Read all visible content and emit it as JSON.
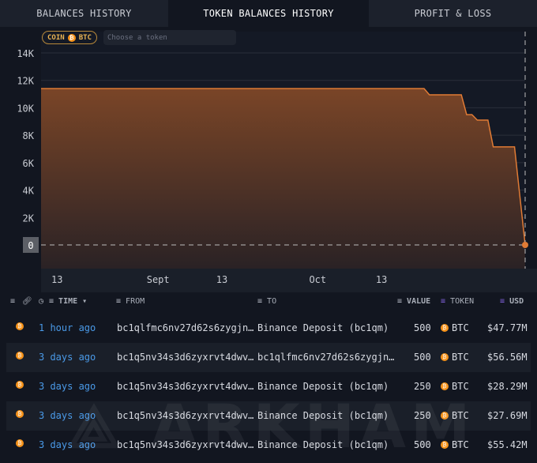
{
  "tabs": [
    {
      "label": "BALANCES HISTORY"
    },
    {
      "label": "TOKEN BALANCES HISTORY",
      "active": true
    },
    {
      "label": "PROFIT & LOSS"
    }
  ],
  "filters": {
    "chip_prefix": "COIN",
    "chip_token": "BTC",
    "token_placeholder": "Choose a token"
  },
  "chart_data": {
    "type": "area",
    "color": "#e07b35",
    "ylim": [
      0,
      14000
    ],
    "y_ticks": [
      "0",
      "2K",
      "4K",
      "6K",
      "8K",
      "10K",
      "12K",
      "14K"
    ],
    "x_ticks": [
      {
        "label": "13",
        "date": "Aug 13"
      },
      {
        "label": "Sept",
        "date": "Sep 1"
      },
      {
        "label": "13",
        "date": "Sep 13"
      },
      {
        "label": "Oct",
        "date": "Oct 1"
      },
      {
        "label": "13",
        "date": "Oct 13"
      }
    ],
    "x_range": [
      "Aug 10",
      "Nov 9"
    ],
    "current_value_label": "0",
    "points": [
      [
        "Aug 10",
        11400
      ],
      [
        "Oct 21",
        11400
      ],
      [
        "Oct 22",
        10950
      ],
      [
        "Oct 28",
        10950
      ],
      [
        "Oct 29",
        9500
      ],
      [
        "Oct 30",
        9500
      ],
      [
        "Oct 31",
        9100
      ],
      [
        "Nov 2",
        9100
      ],
      [
        "Nov 3",
        7150
      ],
      [
        "Nov 7",
        7150
      ],
      [
        "Nov 9",
        0
      ]
    ]
  },
  "table": {
    "headers": {
      "time": "TIME",
      "from": "FROM",
      "to": "TO",
      "value": "VALUE",
      "token": "TOKEN",
      "usd": "USD"
    },
    "rows": [
      {
        "time": "1 hour ago",
        "from": "bc1qlfmc6nv27d62s6zygjn…",
        "to": "Binance Deposit (bc1qm)",
        "value": "500",
        "token": "BTC",
        "usd": "$47.77M"
      },
      {
        "time": "3 days ago",
        "from": "bc1q5nv34s3d6zyxrvt4dwv…",
        "to": "bc1qlfmc6nv27d62s6zygjn…",
        "value": "500",
        "token": "BTC",
        "usd": "$56.56M"
      },
      {
        "time": "3 days ago",
        "from": "bc1q5nv34s3d6zyxrvt4dwv…",
        "to": "Binance Deposit (bc1qm)",
        "value": "250",
        "token": "BTC",
        "usd": "$28.29M"
      },
      {
        "time": "3 days ago",
        "from": "bc1q5nv34s3d6zyxrvt4dwv…",
        "to": "Binance Deposit (bc1qm)",
        "value": "250",
        "token": "BTC",
        "usd": "$27.69M"
      },
      {
        "time": "3 days ago",
        "from": "bc1q5nv34s3d6zyxrvt4dwv…",
        "to": "Binance Deposit (bc1qm)",
        "value": "500",
        "token": "BTC",
        "usd": "$55.42M"
      }
    ]
  },
  "watermark": "ARKHAM"
}
